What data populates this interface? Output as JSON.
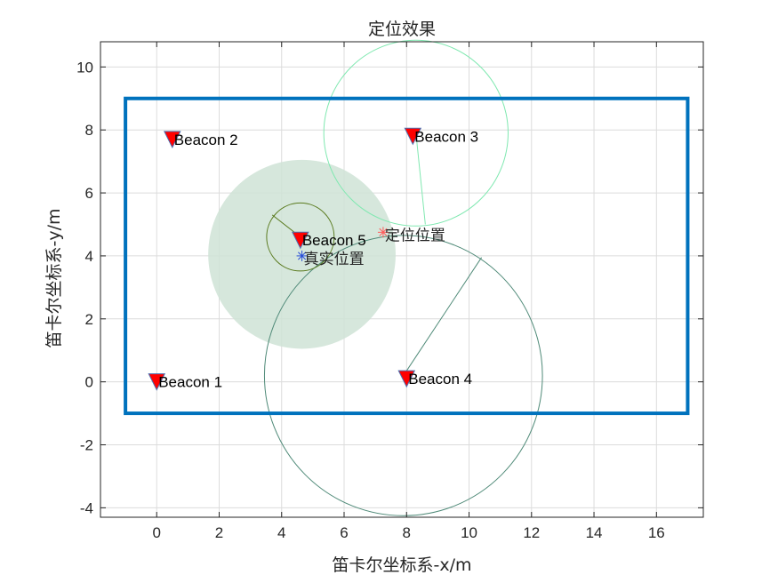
{
  "chart_data": {
    "type": "scatter",
    "title": "定位效果",
    "xlabel": "笛卡尔坐标系-x/m",
    "ylabel": "笛卡尔坐标系-y/m",
    "xlim": [
      -1.8,
      17.5
    ],
    "ylim": [
      -4.3,
      10.8
    ],
    "xticks": [
      0,
      2,
      4,
      6,
      8,
      10,
      12,
      14,
      16
    ],
    "yticks": [
      -4,
      -2,
      0,
      2,
      4,
      6,
      8,
      10
    ],
    "grid": true,
    "boundary": {
      "x": [
        -1,
        17
      ],
      "y": [
        -1,
        9
      ],
      "color": "#0072bd"
    },
    "beacons": [
      {
        "label": "Beacon 1",
        "x": 0.0,
        "y": 0.0
      },
      {
        "label": "Beacon 2",
        "x": 0.5,
        "y": 7.7
      },
      {
        "label": "Beacon 3",
        "x": 8.2,
        "y": 7.8
      },
      {
        "label": "Beacon 4",
        "x": 8.0,
        "y": 0.1
      },
      {
        "label": "Beacon 5",
        "x": 4.6,
        "y": 4.5
      }
    ],
    "beacon_color": "#ff0000",
    "beacon_edge_color": "#4a6fb0",
    "range_circles": [
      {
        "beacon": "Beacon 3",
        "cx": 8.3,
        "cy": 7.9,
        "r": 2.95,
        "end": [
          8.6,
          5.0
        ],
        "color": "#7fe8b0"
      },
      {
        "beacon": "Beacon 4",
        "cx": 7.9,
        "cy": 0.2,
        "r": 4.45,
        "end": [
          10.4,
          3.95
        ],
        "color": "#4f8a78"
      },
      {
        "beacon": "Beacon 5",
        "cx": 4.6,
        "cy": 4.6,
        "r": 1.08,
        "end": [
          3.7,
          5.3
        ],
        "color": "#5a7a1e"
      }
    ],
    "error_region": {
      "cx": 4.65,
      "cy": 4.05,
      "r": 3.0,
      "color": "#cfe3d6"
    },
    "points": [
      {
        "label": "定位位置",
        "x": 7.25,
        "y": 4.75,
        "marker": "asterisk",
        "color": "#ff5a5a"
      },
      {
        "label": "真实位置",
        "x": 4.65,
        "y": 4.0,
        "marker": "asterisk",
        "color": "#2a4fd8"
      }
    ]
  }
}
